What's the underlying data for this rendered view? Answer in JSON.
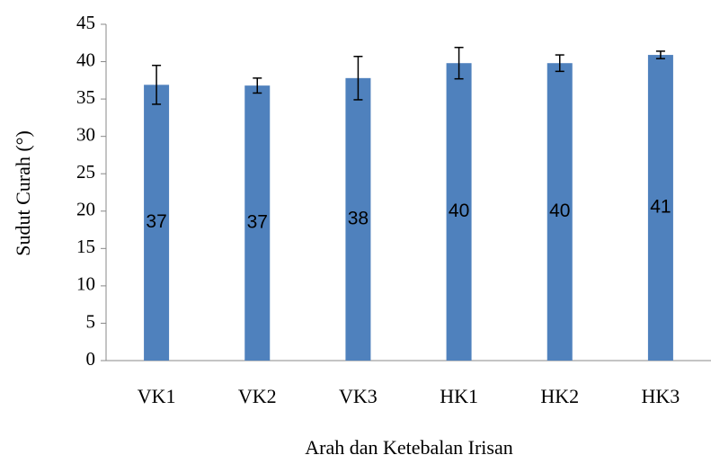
{
  "chart_data": {
    "type": "bar",
    "categories": [
      "VK1",
      "VK2",
      "VK3",
      "HK1",
      "HK2",
      "HK3"
    ],
    "values": [
      36.9,
      36.8,
      37.8,
      39.8,
      39.8,
      40.9
    ],
    "value_labels": [
      "37",
      "37",
      "38",
      "40",
      "40",
      "41"
    ],
    "errors": [
      2.6,
      1.0,
      2.9,
      2.1,
      1.1,
      0.5
    ],
    "color": "#4f81bd",
    "ylim": [
      0,
      45
    ],
    "yticks": [
      0,
      5,
      10,
      15,
      20,
      25,
      30,
      35,
      40,
      45
    ],
    "ylabel": "Sudut Curah (°)",
    "xlabel": "Arah dan Ketebalan Irisan",
    "grid": false
  }
}
